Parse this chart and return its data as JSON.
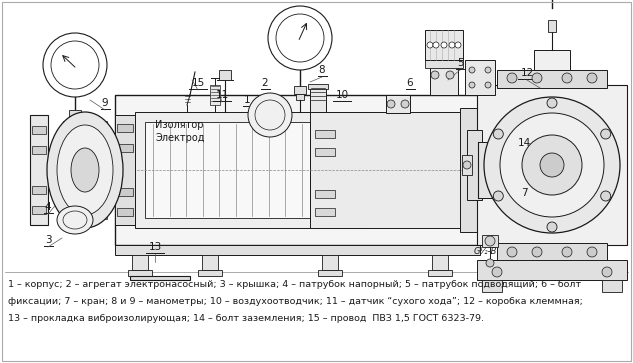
{
  "background_color": "#ffffff",
  "caption_lines": [
    "1 – корпус; 2 – агрегат электронасосный; 3 – крышка; 4 – патрубок напорный; 5 – патрубок подводящий; 6 – болт",
    "фиксации; 7 – кран; 8 и 9 – манометры; 10 – воздухоотводчик; 11 – датчик “сухого хода”; 12 – коробка клеммная;",
    "13 – прокладка виброизолирующая; 14 – болт заземления; 15 – провод  ПВЗ 1,5 ГОСТ 6323-79."
  ],
  "izolator_text": "Изолятор",
  "elektrod_text": "Электрод"
}
